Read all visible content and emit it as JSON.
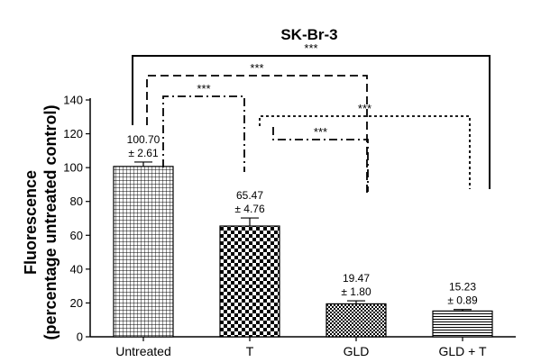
{
  "chart_data": {
    "type": "bar",
    "title": "SK-Br-3",
    "ylabel_line1": "Fluorescence",
    "ylabel_line2": "(percentage untreated control)",
    "xlabel": "",
    "ylim": [
      0,
      140
    ],
    "yticks": [
      0,
      20,
      40,
      60,
      80,
      100,
      120,
      140
    ],
    "categories": [
      "Untreated",
      "T",
      "GLD",
      "GLD + T"
    ],
    "values": [
      100.7,
      65.47,
      19.47,
      15.23
    ],
    "errors": [
      2.61,
      4.76,
      1.8,
      0.89
    ],
    "value_labels": [
      "100.70",
      "65.47",
      "19.47",
      "15.23"
    ],
    "error_labels": [
      "± 2.61",
      "± 4.76",
      "± 1.80",
      "± 0.89"
    ],
    "patterns": [
      "grid",
      "checker",
      "fine-checker",
      "hlines"
    ],
    "significance": [
      {
        "from": "Untreated",
        "to": "GLD + T",
        "label": "***",
        "style": "solid"
      },
      {
        "from": "Untreated",
        "to": "GLD",
        "label": "***",
        "style": "dashed"
      },
      {
        "from": "Untreated",
        "to": "T",
        "label": "***",
        "style": "dashdot"
      },
      {
        "from": "T",
        "to": "GLD + T",
        "label": "***",
        "style": "dotted"
      },
      {
        "from": "T",
        "to": "GLD",
        "label": "***",
        "style": "dashdot"
      }
    ]
  }
}
